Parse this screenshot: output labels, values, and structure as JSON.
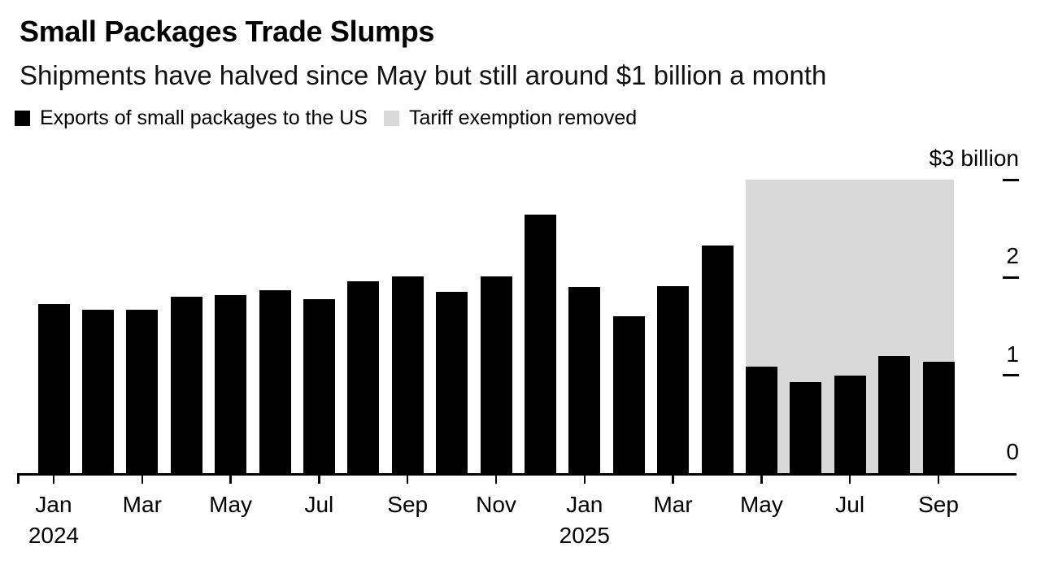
{
  "header": {
    "title": "Small Packages Trade Slumps",
    "subtitle": "Shipments have halved since May but still around $1 billion a month"
  },
  "legend": [
    {
      "label": "Exports of small packages to the US",
      "color": "#000000"
    },
    {
      "label": "Tariff exemption removed",
      "color": "#d9d9d9"
    }
  ],
  "chart_data": {
    "type": "bar",
    "title": "Small Packages Trade Slumps",
    "subtitle": "Shipments have halved since May but still around $1 billion a month",
    "series_name": "Exports of small packages to the US",
    "unit": "billions of US dollars per month",
    "categories": [
      "Jan 2024",
      "Feb 2024",
      "Mar 2024",
      "Apr 2024",
      "May 2024",
      "Jun 2024",
      "Jul 2024",
      "Aug 2024",
      "Sep 2024",
      "Oct 2024",
      "Nov 2024",
      "Dec 2024",
      "Jan 2025",
      "Feb 2025",
      "Mar 2025",
      "Apr 2025",
      "May 2025",
      "Jun 2025",
      "Jul 2025",
      "Aug 2025",
      "Sep 2025"
    ],
    "values": [
      1.73,
      1.67,
      1.67,
      1.8,
      1.82,
      1.87,
      1.78,
      1.96,
      2.01,
      1.85,
      2.01,
      2.64,
      1.9,
      1.6,
      1.91,
      2.33,
      1.09,
      0.93,
      1.0,
      1.2,
      1.14
    ],
    "bar_color": "#000000",
    "ylim": [
      0,
      3
    ],
    "yticks": [
      {
        "value": 3,
        "label": "$3 billion"
      },
      {
        "value": 2,
        "label": "2"
      },
      {
        "value": 1,
        "label": "1"
      },
      {
        "value": 0,
        "label": "0"
      }
    ],
    "xtick_months_shown": [
      "Jan",
      "Mar",
      "May",
      "Jul",
      "Sep",
      "Nov",
      "Jan",
      "Mar",
      "May",
      "Jul",
      "Sep"
    ],
    "xtick_years_shown": [
      "2024",
      "2025"
    ],
    "grid": false,
    "legend_position": "top",
    "highlight_region": {
      "label": "Tariff exemption removed",
      "start_category": "May 2025",
      "end_category": "Sep 2025",
      "y_from": 0,
      "y_to": 3,
      "color": "#d9d9d9"
    }
  }
}
